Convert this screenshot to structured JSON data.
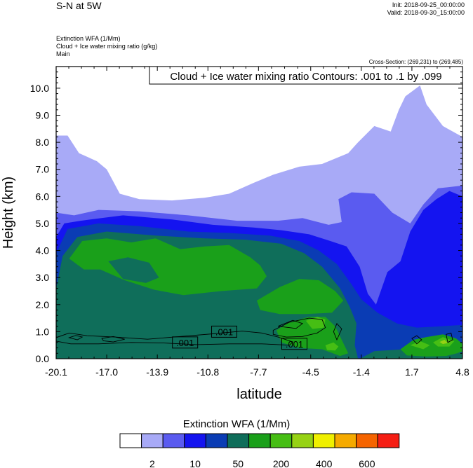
{
  "header": {
    "title": "S-N at 5W",
    "init": "Init: 2018-09-25_00:00:00",
    "valid": "Valid: 2018-09-30_15:00:00",
    "field1": "Extinction WFA   (1/Mm)",
    "field2": "Cloud + Ice water mixing ratio   (g/kg)",
    "field3": "Main",
    "cross_section": "Cross-Section: (269,231) to (269,485)"
  },
  "chart_data": {
    "type": "heatmap",
    "xlabel": "latitude",
    "ylabel": "Height (km)",
    "xlim": [
      -20.1,
      4.8
    ],
    "ylim": [
      0,
      10.8
    ],
    "x_ticks": [
      "-20.1",
      "-17.0",
      "-13.9",
      "-10.8",
      "-7.7",
      "-4.5",
      "-1.4",
      "1.7",
      "4.8"
    ],
    "y_ticks": [
      "0.0",
      "1.0",
      "2.0",
      "3.0",
      "4.0",
      "5.0",
      "6.0",
      "7.0",
      "8.0",
      "9.0",
      "10.0"
    ],
    "contour_title": "Cloud + Ice water mixing ratio Contours: .001 to .1 by .099",
    "contour_labels": [
      {
        "text": ".001",
        "lat": -9.8,
        "h": 1.0
      },
      {
        "text": ".001",
        "lat": -12.2,
        "h": 0.6
      },
      {
        "text": ".001",
        "lat": -5.5,
        "h": 0.55
      }
    ],
    "colorbar": {
      "title": "Extinction WFA  (1/Mm)",
      "colors": [
        "#ffffff",
        "#a8aaf7",
        "#5a5bf0",
        "#1414f0",
        "#0a3cb4",
        "#0f6e5a",
        "#1aa01a",
        "#46be14",
        "#96d214",
        "#f0f000",
        "#f5aa00",
        "#f56400",
        "#f51e14"
      ],
      "tick_labels": [
        "2",
        "10",
        "50",
        "200",
        "400",
        "600"
      ],
      "tick_slot": [
        1,
        3,
        5,
        7,
        9,
        11
      ]
    },
    "regions": [
      {
        "color": "#a8aaf7",
        "points": [
          [
            -20.1,
            0
          ],
          [
            -20.1,
            8.25
          ],
          [
            -19.4,
            8.25
          ],
          [
            -18.7,
            7.6
          ],
          [
            -17.6,
            7.3
          ],
          [
            -17.0,
            7.0
          ],
          [
            -16.2,
            6.1
          ],
          [
            -15.0,
            5.9
          ],
          [
            -13.0,
            5.85
          ],
          [
            -11.0,
            5.95
          ],
          [
            -9.5,
            6.1
          ],
          [
            -8.0,
            6.5
          ],
          [
            -6.8,
            6.8
          ],
          [
            -5.2,
            7.1
          ],
          [
            -3.8,
            7.2
          ],
          [
            -2.2,
            7.6
          ],
          [
            -1.6,
            8.0
          ],
          [
            -0.6,
            8.6
          ],
          [
            0.4,
            8.4
          ],
          [
            0.9,
            9.2
          ],
          [
            1.3,
            9.7
          ],
          [
            2.2,
            10.1
          ],
          [
            2.6,
            9.4
          ],
          [
            3.6,
            8.6
          ],
          [
            4.8,
            8.2
          ],
          [
            4.8,
            0
          ]
        ]
      },
      {
        "color": "#ffffff",
        "points": [
          [
            -2.2,
            5.0
          ],
          [
            -1.6,
            4.85
          ],
          [
            -0.8,
            5.1
          ],
          [
            -0.3,
            5.45
          ],
          [
            -1.1,
            5.6
          ],
          [
            -1.7,
            5.45
          ]
        ]
      },
      {
        "color": "#5a5bf0",
        "points": [
          [
            -20.1,
            0
          ],
          [
            -20.1,
            5.4
          ],
          [
            -19.0,
            5.3
          ],
          [
            -17.5,
            5.5
          ],
          [
            -15.0,
            5.45
          ],
          [
            -12.0,
            5.3
          ],
          [
            -9.0,
            5.1
          ],
          [
            -6.5,
            5.1
          ],
          [
            -5.0,
            5.2
          ],
          [
            -3.4,
            4.95
          ],
          [
            -2.6,
            5.05
          ],
          [
            -2.8,
            5.9
          ],
          [
            -2.0,
            6.15
          ],
          [
            -0.6,
            6.1
          ],
          [
            0.5,
            5.4
          ],
          [
            1.6,
            5.0
          ],
          [
            2.4,
            5.7
          ],
          [
            3.3,
            6.3
          ],
          [
            4.8,
            6.4
          ],
          [
            4.8,
            0
          ]
        ]
      },
      {
        "color": "#1414f0",
        "points": [
          [
            -20.1,
            0
          ],
          [
            -20.1,
            4.5
          ],
          [
            -19.6,
            5.0
          ],
          [
            -18.6,
            5.1
          ],
          [
            -16.0,
            5.3
          ],
          [
            -13.0,
            5.15
          ],
          [
            -10.5,
            4.95
          ],
          [
            -8.0,
            4.85
          ],
          [
            -6.3,
            4.75
          ],
          [
            -4.6,
            4.6
          ],
          [
            -3.3,
            4.35
          ],
          [
            -2.3,
            4.15
          ],
          [
            -1.5,
            3.4
          ],
          [
            -1.0,
            2.4
          ],
          [
            -0.5,
            2.0
          ],
          [
            0.2,
            3.2
          ],
          [
            1.0,
            3.6
          ],
          [
            1.6,
            4.7
          ],
          [
            2.4,
            5.5
          ],
          [
            3.2,
            5.9
          ],
          [
            4.0,
            6.2
          ],
          [
            4.8,
            6.0
          ],
          [
            4.8,
            0
          ]
        ]
      },
      {
        "color": "#0a3cb4",
        "points": [
          [
            -20.1,
            0
          ],
          [
            -20.1,
            3.9
          ],
          [
            -19.4,
            4.8
          ],
          [
            -17.5,
            5.0
          ],
          [
            -15.0,
            4.9
          ],
          [
            -12.0,
            4.7
          ],
          [
            -9.5,
            4.65
          ],
          [
            -7.0,
            4.55
          ],
          [
            -5.2,
            4.35
          ],
          [
            -4.0,
            4.0
          ],
          [
            -2.9,
            3.5
          ],
          [
            -2.0,
            2.75
          ],
          [
            -1.4,
            2.2
          ],
          [
            -0.4,
            1.7
          ],
          [
            0.8,
            1.3
          ],
          [
            2.0,
            1.15
          ],
          [
            3.5,
            1.2
          ],
          [
            4.8,
            1.25
          ],
          [
            4.8,
            0
          ]
        ]
      },
      {
        "color": "#0f6e5a",
        "points": [
          [
            -20.1,
            0
          ],
          [
            -20.1,
            2.6
          ],
          [
            -19.7,
            3.8
          ],
          [
            -18.8,
            4.5
          ],
          [
            -17.0,
            4.7
          ],
          [
            -14.0,
            4.55
          ],
          [
            -11.0,
            4.45
          ],
          [
            -8.5,
            4.4
          ],
          [
            -6.3,
            4.25
          ],
          [
            -4.9,
            3.9
          ],
          [
            -3.8,
            3.4
          ],
          [
            -2.7,
            2.6
          ],
          [
            -2.1,
            1.9
          ],
          [
            -1.7,
            1.3
          ],
          [
            -1.8,
            0.5
          ],
          [
            -1.6,
            0
          ],
          [
            4.8,
            0
          ],
          [
            4.8,
            0.2
          ],
          [
            3.0,
            0.3
          ],
          [
            1.2,
            0.35
          ],
          [
            -0.6,
            0.28
          ],
          [
            -1.5,
            0
          ]
        ]
      },
      {
        "color": "#1aa01a",
        "points": [
          [
            -19.3,
            3.7
          ],
          [
            -18.5,
            4.35
          ],
          [
            -17.0,
            4.45
          ],
          [
            -15.5,
            4.3
          ],
          [
            -14.0,
            4.45
          ],
          [
            -12.5,
            4.05
          ],
          [
            -11.0,
            4.15
          ],
          [
            -9.5,
            4.2
          ],
          [
            -8.2,
            3.75
          ],
          [
            -7.6,
            3.45
          ],
          [
            -7.2,
            3.05
          ],
          [
            -7.8,
            2.6
          ],
          [
            -10.0,
            2.5
          ],
          [
            -12.3,
            2.35
          ],
          [
            -14.1,
            2.55
          ],
          [
            -15.9,
            2.9
          ],
          [
            -17.4,
            3.3
          ],
          [
            -18.4,
            3.3
          ]
        ]
      },
      {
        "color": "#0f6e5a",
        "points": [
          [
            -16.9,
            3.6
          ],
          [
            -15.7,
            3.75
          ],
          [
            -14.4,
            3.55
          ],
          [
            -13.8,
            3.0
          ],
          [
            -14.6,
            2.8
          ],
          [
            -16.0,
            2.95
          ]
        ]
      },
      {
        "color": "#1aa01a",
        "points": [
          [
            -7.8,
            2.15
          ],
          [
            -6.4,
            2.65
          ],
          [
            -5.2,
            2.95
          ],
          [
            -4.0,
            2.9
          ],
          [
            -3.0,
            2.5
          ],
          [
            -2.5,
            2.15
          ],
          [
            -3.2,
            1.7
          ],
          [
            -4.8,
            1.65
          ],
          [
            -6.4,
            1.65
          ],
          [
            -7.6,
            1.8
          ]
        ]
      },
      {
        "color": "#1aa01a",
        "points": [
          [
            -6.6,
            1.05
          ],
          [
            -5.8,
            1.35
          ],
          [
            -4.6,
            1.55
          ],
          [
            -3.6,
            1.55
          ],
          [
            -3.0,
            1.2
          ],
          [
            -2.6,
            0.7
          ],
          [
            -2.2,
            0.2
          ],
          [
            -2.7,
            0.1
          ],
          [
            -3.8,
            0.35
          ],
          [
            -5.2,
            0.4
          ],
          [
            -6.3,
            0.6
          ]
        ]
      },
      {
        "color": "#46be14",
        "points": [
          [
            -4.8,
            1.4
          ],
          [
            -4.1,
            1.55
          ],
          [
            -3.6,
            1.45
          ],
          [
            -3.7,
            1.15
          ],
          [
            -4.4,
            1.1
          ]
        ]
      },
      {
        "color": "#46be14",
        "points": [
          [
            -3.6,
            0.5
          ],
          [
            -3.1,
            0.6
          ],
          [
            -2.8,
            0.45
          ],
          [
            -3.0,
            0.3
          ],
          [
            -3.5,
            0.32
          ]
        ]
      },
      {
        "color": "#1aa01a",
        "points": [
          [
            1.0,
            0.35
          ],
          [
            1.8,
            0.7
          ],
          [
            2.6,
            0.8
          ],
          [
            3.6,
            0.9
          ],
          [
            4.4,
            0.75
          ],
          [
            4.8,
            0.55
          ],
          [
            4.8,
            0.25
          ],
          [
            3.8,
            0.1
          ],
          [
            2.6,
            0.08
          ],
          [
            1.4,
            0.12
          ]
        ]
      },
      {
        "color": "#46be14",
        "points": [
          [
            1.6,
            0.5
          ],
          [
            2.2,
            0.65
          ],
          [
            2.8,
            0.5
          ],
          [
            2.4,
            0.35
          ]
        ]
      },
      {
        "color": "#46be14",
        "points": [
          [
            3.0,
            0.6
          ],
          [
            3.6,
            0.8
          ],
          [
            4.3,
            0.65
          ],
          [
            4.0,
            0.45
          ],
          [
            3.3,
            0.45
          ]
        ]
      },
      {
        "color": "#96d214",
        "points": [
          [
            3.4,
            0.62
          ],
          [
            3.7,
            0.7
          ],
          [
            3.9,
            0.58
          ],
          [
            3.6,
            0.54
          ]
        ]
      }
    ]
  }
}
